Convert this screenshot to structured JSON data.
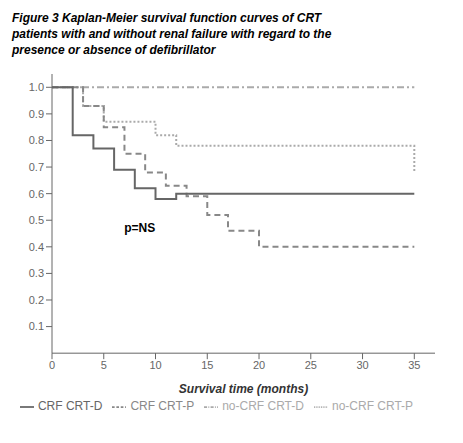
{
  "chart_data": {
    "type": "step",
    "title": [
      "Figure 3 Kaplan-Meier survival function curves of CRT",
      "patients with and without renal failure with regard to the",
      "presence or absence of defibrillator"
    ],
    "xlabel": "Survival time (months)",
    "xlim": [
      0,
      37
    ],
    "ylim": [
      0,
      1.05
    ],
    "xticks": [
      0,
      5,
      10,
      15,
      20,
      25,
      30,
      35
    ],
    "yticks": [
      0.1,
      0.2,
      0.3,
      0.4,
      0.5,
      0.6,
      0.7,
      0.8,
      0.9,
      {
        "value": 1.0,
        "label": "1.0"
      }
    ],
    "legend": "bottom",
    "annotations": [
      {
        "text": "p=NS",
        "x": 6.5,
        "y": 0.47
      }
    ],
    "series": [
      {
        "name": "no-CRF CRT-D",
        "color": "#aaaaaa",
        "line_style": "dashdot",
        "x": [
          0,
          2,
          4,
          6,
          35
        ],
        "values": [
          1.0,
          1.0,
          1.0,
          1.0,
          1.0
        ]
      },
      {
        "name": "no-CRF CRT-P",
        "color": "#aaaaaa",
        "line_style": "dotted",
        "x": [
          0,
          3,
          5,
          10,
          12,
          14,
          25,
          35
        ],
        "values": [
          1.0,
          0.93,
          0.87,
          0.82,
          0.78,
          0.78,
          0.78,
          0.68
        ]
      },
      {
        "name": "CRF CRT-P",
        "color": "#888888",
        "line_style": "dashed",
        "x": [
          0,
          3,
          5,
          7,
          9,
          11,
          13,
          15,
          17,
          20,
          35
        ],
        "values": [
          1.0,
          0.93,
          0.85,
          0.75,
          0.68,
          0.63,
          0.59,
          0.52,
          0.46,
          0.4,
          0.4
        ]
      },
      {
        "name": "CRF CRT-D",
        "color": "#666666",
        "line_style": "solid",
        "x": [
          0,
          2,
          4,
          6,
          8,
          10,
          12,
          25,
          35
        ],
        "values": [
          1.0,
          0.82,
          0.77,
          0.69,
          0.62,
          0.58,
          0.6,
          0.6,
          0.6
        ]
      }
    ]
  }
}
